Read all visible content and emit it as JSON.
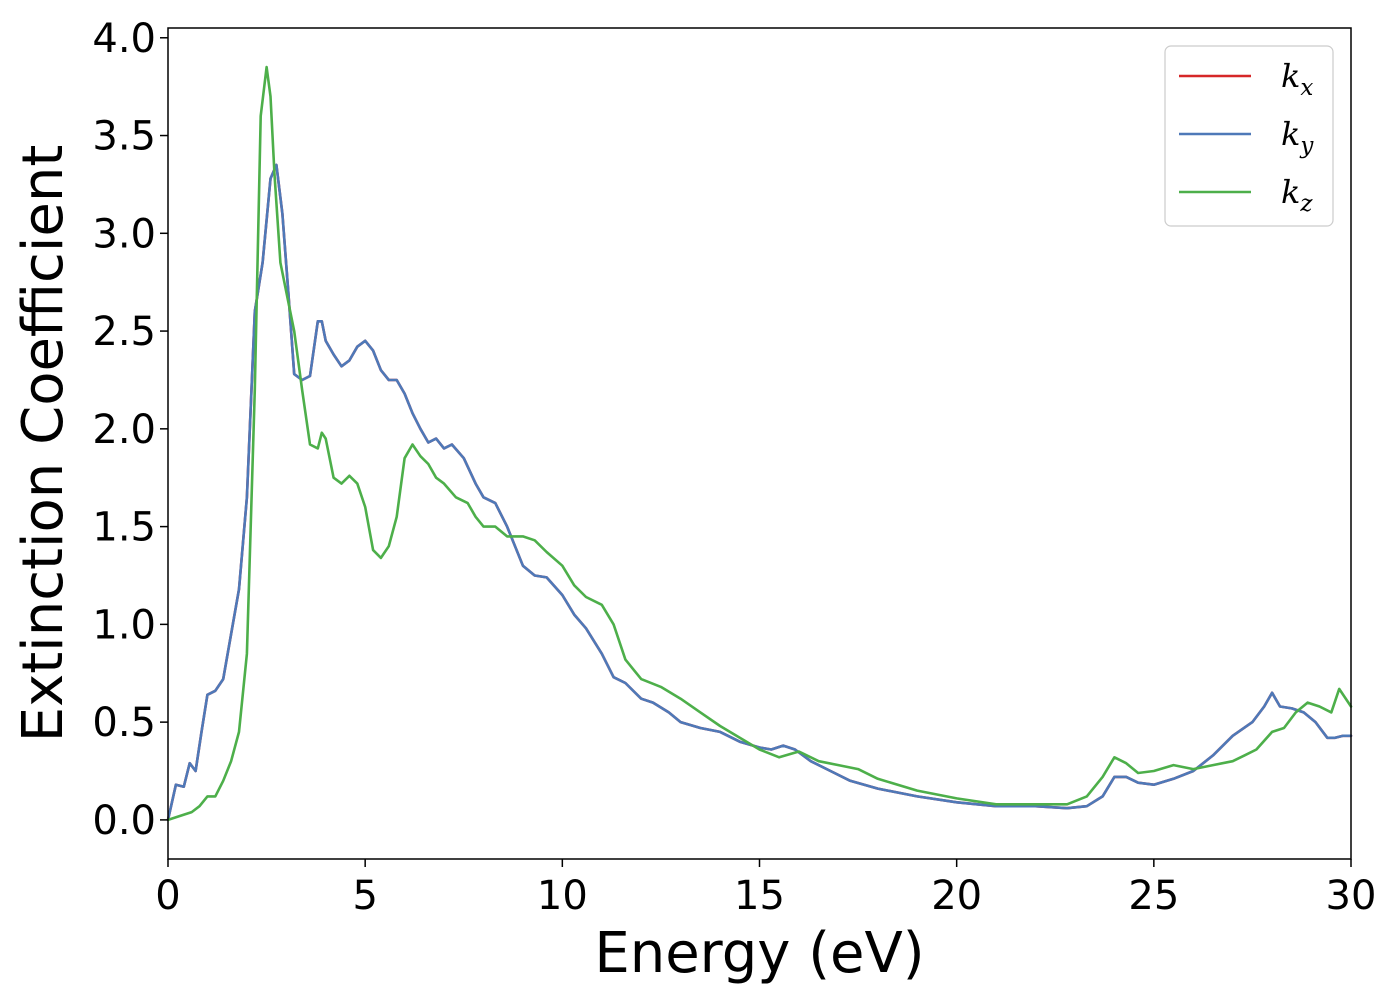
{
  "chart_data": {
    "type": "line",
    "xlabel": "Energy (eV)",
    "ylabel": "Extinction Coefficient",
    "xlim": [
      0,
      30
    ],
    "ylim": [
      -0.2,
      4.05
    ],
    "xticks": [
      0,
      5,
      10,
      15,
      20,
      25,
      30
    ],
    "xtick_labels": [
      "0",
      "5",
      "10",
      "15",
      "20",
      "25",
      "30"
    ],
    "yticks": [
      0.0,
      0.5,
      1.0,
      1.5,
      2.0,
      2.5,
      3.0,
      3.5,
      4.0
    ],
    "ytick_labels": [
      "0.0",
      "0.5",
      "1.0",
      "1.5",
      "2.0",
      "2.5",
      "3.0",
      "3.5",
      "4.0"
    ],
    "grid": false,
    "legend_position": "top-right",
    "series": [
      {
        "name": "k",
        "subscript": "x",
        "color": "#d62728",
        "x": [
          0,
          0.2,
          0.4,
          0.55,
          0.7,
          0.85,
          1.0,
          1.2,
          1.4,
          1.6,
          1.8,
          2.0,
          2.2,
          2.4,
          2.6,
          2.75,
          2.9,
          3.05,
          3.2,
          3.4,
          3.6,
          3.8,
          3.9,
          4.0,
          4.2,
          4.4,
          4.6,
          4.8,
          5.0,
          5.2,
          5.4,
          5.6,
          5.8,
          6.0,
          6.2,
          6.4,
          6.6,
          6.8,
          7.0,
          7.2,
          7.5,
          7.8,
          8.0,
          8.3,
          8.6,
          9.0,
          9.3,
          9.6,
          10.0,
          10.3,
          10.6,
          11.0,
          11.3,
          11.6,
          12.0,
          12.3,
          12.7,
          13.0,
          13.5,
          14.0,
          14.5,
          15.0,
          15.3,
          15.6,
          15.9,
          16.3,
          16.8,
          17.3,
          18.0,
          19.0,
          20.0,
          21.0,
          22.0,
          22.8,
          23.3,
          23.7,
          24.0,
          24.3,
          24.6,
          25.0,
          25.5,
          26.0,
          26.5,
          27.0,
          27.5,
          27.8,
          28.0,
          28.2,
          28.5,
          28.8,
          29.1,
          29.4,
          29.6,
          29.8,
          30.0
        ],
        "values": [
          0.0,
          0.18,
          0.17,
          0.29,
          0.25,
          0.45,
          0.64,
          0.66,
          0.72,
          0.95,
          1.18,
          1.65,
          2.6,
          2.85,
          3.28,
          3.35,
          3.1,
          2.7,
          2.28,
          2.25,
          2.27,
          2.55,
          2.55,
          2.45,
          2.38,
          2.32,
          2.35,
          2.42,
          2.45,
          2.4,
          2.3,
          2.25,
          2.25,
          2.18,
          2.08,
          2.0,
          1.93,
          1.95,
          1.9,
          1.92,
          1.85,
          1.72,
          1.65,
          1.62,
          1.5,
          1.3,
          1.25,
          1.24,
          1.15,
          1.05,
          0.98,
          0.85,
          0.73,
          0.7,
          0.62,
          0.6,
          0.55,
          0.5,
          0.47,
          0.45,
          0.4,
          0.37,
          0.36,
          0.38,
          0.36,
          0.3,
          0.25,
          0.2,
          0.16,
          0.12,
          0.09,
          0.07,
          0.07,
          0.06,
          0.07,
          0.12,
          0.22,
          0.22,
          0.19,
          0.18,
          0.21,
          0.25,
          0.33,
          0.43,
          0.5,
          0.58,
          0.65,
          0.58,
          0.57,
          0.55,
          0.5,
          0.42,
          0.42,
          0.43,
          0.43
        ]
      },
      {
        "name": "k",
        "subscript": "y",
        "color": "#4e79b8",
        "x": [
          0,
          0.2,
          0.4,
          0.55,
          0.7,
          0.85,
          1.0,
          1.2,
          1.4,
          1.6,
          1.8,
          2.0,
          2.2,
          2.4,
          2.6,
          2.75,
          2.9,
          3.05,
          3.2,
          3.4,
          3.6,
          3.8,
          3.9,
          4.0,
          4.2,
          4.4,
          4.6,
          4.8,
          5.0,
          5.2,
          5.4,
          5.6,
          5.8,
          6.0,
          6.2,
          6.4,
          6.6,
          6.8,
          7.0,
          7.2,
          7.5,
          7.8,
          8.0,
          8.3,
          8.6,
          9.0,
          9.3,
          9.6,
          10.0,
          10.3,
          10.6,
          11.0,
          11.3,
          11.6,
          12.0,
          12.3,
          12.7,
          13.0,
          13.5,
          14.0,
          14.5,
          15.0,
          15.3,
          15.6,
          15.9,
          16.3,
          16.8,
          17.3,
          18.0,
          19.0,
          20.0,
          21.0,
          22.0,
          22.8,
          23.3,
          23.7,
          24.0,
          24.3,
          24.6,
          25.0,
          25.5,
          26.0,
          26.5,
          27.0,
          27.5,
          27.8,
          28.0,
          28.2,
          28.5,
          28.8,
          29.1,
          29.4,
          29.6,
          29.8,
          30.0
        ],
        "values": [
          0.0,
          0.18,
          0.17,
          0.29,
          0.25,
          0.45,
          0.64,
          0.66,
          0.72,
          0.95,
          1.18,
          1.65,
          2.6,
          2.85,
          3.28,
          3.35,
          3.1,
          2.7,
          2.28,
          2.25,
          2.27,
          2.55,
          2.55,
          2.45,
          2.38,
          2.32,
          2.35,
          2.42,
          2.45,
          2.4,
          2.3,
          2.25,
          2.25,
          2.18,
          2.08,
          2.0,
          1.93,
          1.95,
          1.9,
          1.92,
          1.85,
          1.72,
          1.65,
          1.62,
          1.5,
          1.3,
          1.25,
          1.24,
          1.15,
          1.05,
          0.98,
          0.85,
          0.73,
          0.7,
          0.62,
          0.6,
          0.55,
          0.5,
          0.47,
          0.45,
          0.4,
          0.37,
          0.36,
          0.38,
          0.36,
          0.3,
          0.25,
          0.2,
          0.16,
          0.12,
          0.09,
          0.07,
          0.07,
          0.06,
          0.07,
          0.12,
          0.22,
          0.22,
          0.19,
          0.18,
          0.21,
          0.25,
          0.33,
          0.43,
          0.5,
          0.58,
          0.65,
          0.58,
          0.57,
          0.55,
          0.5,
          0.42,
          0.42,
          0.43,
          0.43
        ]
      },
      {
        "name": "k",
        "subscript": "z",
        "color": "#4daf4a",
        "x": [
          0,
          0.3,
          0.6,
          0.8,
          1.0,
          1.2,
          1.4,
          1.6,
          1.8,
          2.0,
          2.2,
          2.35,
          2.5,
          2.6,
          2.7,
          2.85,
          3.0,
          3.2,
          3.4,
          3.6,
          3.8,
          3.9,
          4.0,
          4.2,
          4.4,
          4.6,
          4.8,
          5.0,
          5.2,
          5.4,
          5.6,
          5.8,
          6.0,
          6.2,
          6.4,
          6.6,
          6.8,
          7.0,
          7.3,
          7.6,
          7.8,
          8.0,
          8.3,
          8.6,
          9.0,
          9.3,
          9.6,
          10.0,
          10.3,
          10.6,
          11.0,
          11.3,
          11.6,
          12.0,
          12.5,
          13.0,
          13.5,
          14.0,
          14.5,
          15.0,
          15.5,
          16.0,
          16.5,
          17.0,
          17.5,
          18.0,
          19.0,
          20.0,
          21.0,
          22.0,
          22.8,
          23.3,
          23.7,
          24.0,
          24.3,
          24.6,
          25.0,
          25.5,
          26.0,
          26.5,
          27.0,
          27.3,
          27.6,
          28.0,
          28.3,
          28.6,
          28.9,
          29.2,
          29.5,
          29.7,
          30.0
        ],
        "values": [
          0.0,
          0.02,
          0.04,
          0.07,
          0.12,
          0.12,
          0.2,
          0.3,
          0.45,
          0.85,
          2.2,
          3.6,
          3.85,
          3.7,
          3.3,
          2.85,
          2.7,
          2.5,
          2.2,
          1.92,
          1.9,
          1.98,
          1.95,
          1.75,
          1.72,
          1.76,
          1.72,
          1.6,
          1.38,
          1.34,
          1.4,
          1.55,
          1.85,
          1.92,
          1.86,
          1.82,
          1.75,
          1.72,
          1.65,
          1.62,
          1.55,
          1.5,
          1.5,
          1.45,
          1.45,
          1.43,
          1.37,
          1.3,
          1.2,
          1.14,
          1.1,
          1.0,
          0.82,
          0.72,
          0.68,
          0.62,
          0.55,
          0.48,
          0.42,
          0.36,
          0.32,
          0.35,
          0.3,
          0.28,
          0.26,
          0.21,
          0.15,
          0.11,
          0.08,
          0.08,
          0.08,
          0.12,
          0.22,
          0.32,
          0.29,
          0.24,
          0.25,
          0.28,
          0.26,
          0.28,
          0.3,
          0.33,
          0.36,
          0.45,
          0.47,
          0.55,
          0.6,
          0.58,
          0.55,
          0.67,
          0.58
        ]
      }
    ]
  }
}
